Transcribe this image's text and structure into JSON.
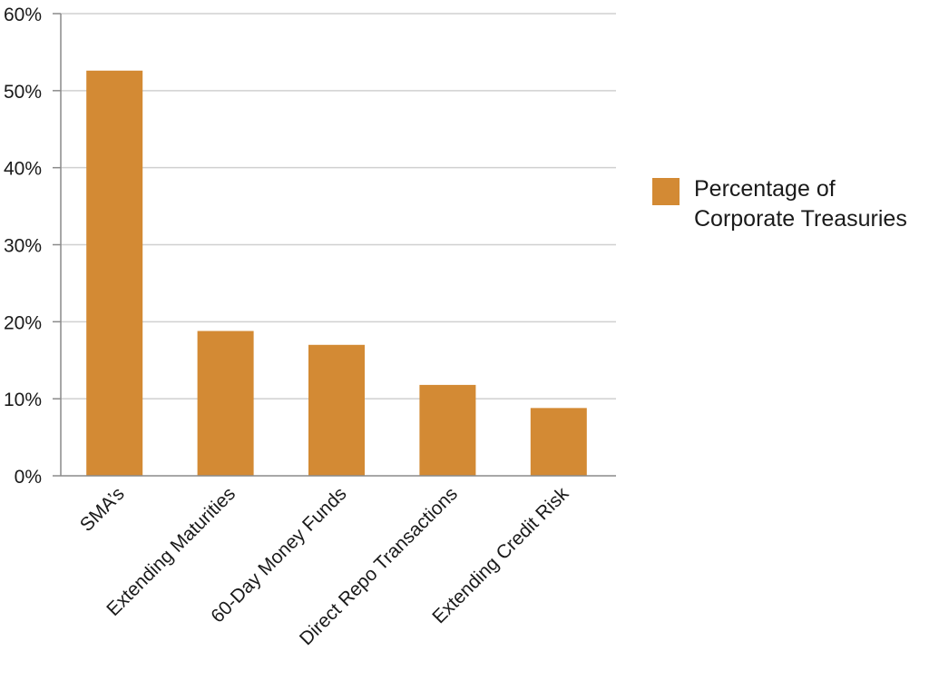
{
  "chart_data": {
    "type": "bar",
    "categories": [
      "SMA’s",
      "Extending Maturities",
      "60-Day Money Funds",
      "Direct Repo Transactions",
      "Extending Credit Risk"
    ],
    "series": [
      {
        "name": "Percentage of Corporate Treasuries",
        "values": [
          52.6,
          18.8,
          17.0,
          11.8,
          8.8
        ],
        "color": "#d38a34"
      }
    ],
    "yticks": [
      "0%",
      "10%",
      "20%",
      "30%",
      "40%",
      "50%",
      "60%"
    ],
    "ylim": [
      0,
      60
    ],
    "grid": true,
    "legend": "right",
    "colors": {
      "bar": "#d38a34",
      "grid": "#d0d0d0",
      "axis": "#8a8a8a",
      "text": "#1a1a1a"
    }
  }
}
